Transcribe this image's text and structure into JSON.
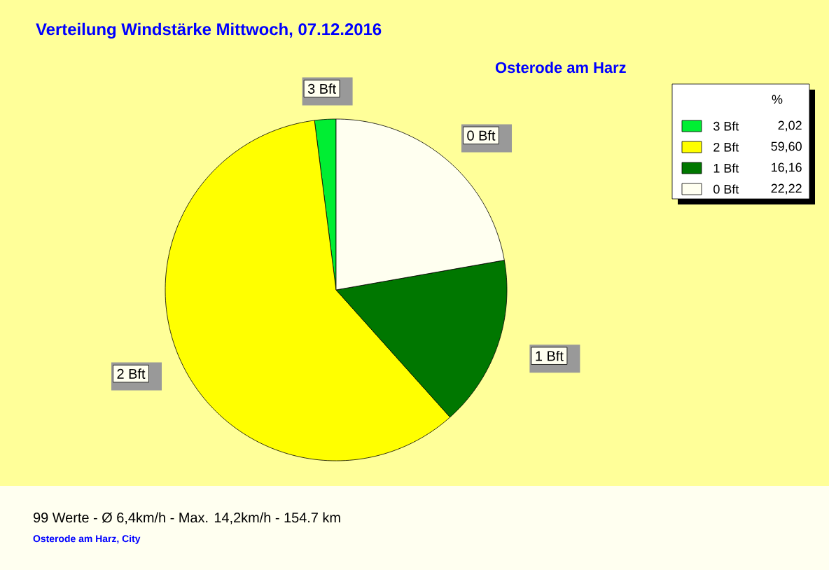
{
  "chart_data": {
    "type": "pie",
    "title": "Verteilung Windstärke  Mittwoch, 07.12.2016",
    "subtitle": "Osterode am Harz",
    "categories": [
      "3 Bft",
      "2 Bft",
      "1 Bft",
      "0 Bft"
    ],
    "values": [
      2.02,
      59.6,
      16.16,
      22.22
    ],
    "value_labels": [
      "2,02",
      "59,60",
      "16,16",
      "22,22"
    ],
    "colors": [
      "#00ee33",
      "#ffff00",
      "#007700",
      "#fffff0"
    ],
    "legend": "top right",
    "legend_title": "%",
    "annotations": [
      "99 Werte  -  Ø 6,4km/h  -  Max. 14,2km/h  -  154.7 km",
      "Osterode am Harz, City"
    ]
  }
}
